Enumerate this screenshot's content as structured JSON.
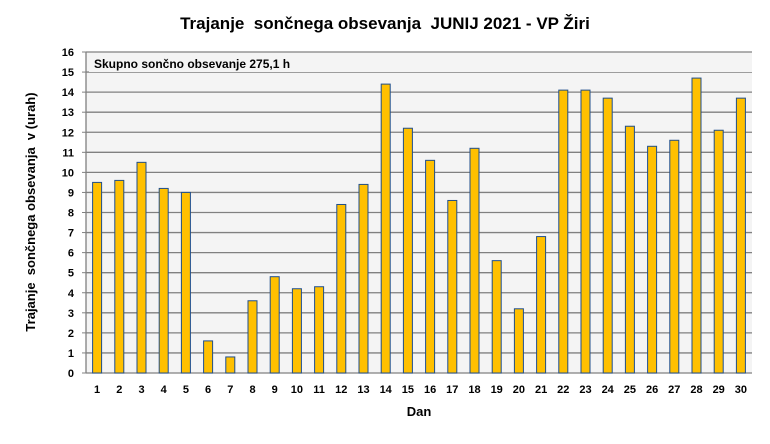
{
  "chart_data": {
    "type": "bar",
    "title": "Trajanje  sončnega obsevanja  JUNIJ 2021 - VP Žiri",
    "annotation": "Skupno sončno obsevanje 275,1 h",
    "xlabel": "Dan",
    "ylabel": "Trajanje  sončnega obsevanja  v (urah)",
    "ylim": [
      0,
      16
    ],
    "yticks": [
      "0",
      "1",
      "2",
      "3",
      "4",
      "5",
      "6",
      "7",
      "8",
      "9",
      "10",
      "11",
      "12",
      "13",
      "14",
      "15",
      "16"
    ],
    "grid": true,
    "categories": [
      "1",
      "2",
      "3",
      "4",
      "5",
      "6",
      "7",
      "8",
      "9",
      "10",
      "11",
      "12",
      "13",
      "14",
      "15",
      "16",
      "17",
      "18",
      "19",
      "20",
      "21",
      "22",
      "23",
      "24",
      "25",
      "26",
      "27",
      "28",
      "29",
      "30"
    ],
    "values": [
      9.5,
      9.6,
      10.5,
      9.2,
      9.0,
      1.6,
      0.8,
      3.6,
      4.8,
      4.2,
      4.3,
      8.4,
      9.4,
      14.4,
      12.2,
      10.6,
      8.6,
      11.2,
      5.6,
      3.2,
      6.8,
      14.1,
      14.1,
      13.7,
      12.3,
      11.3,
      11.6,
      14.7,
      12.1,
      13.7
    ],
    "colors": {
      "bar_fill": "#FFC000",
      "bar_stroke": "#1F4E8C",
      "plot_bg": "#F4F4F4",
      "grid": "#808080"
    }
  }
}
